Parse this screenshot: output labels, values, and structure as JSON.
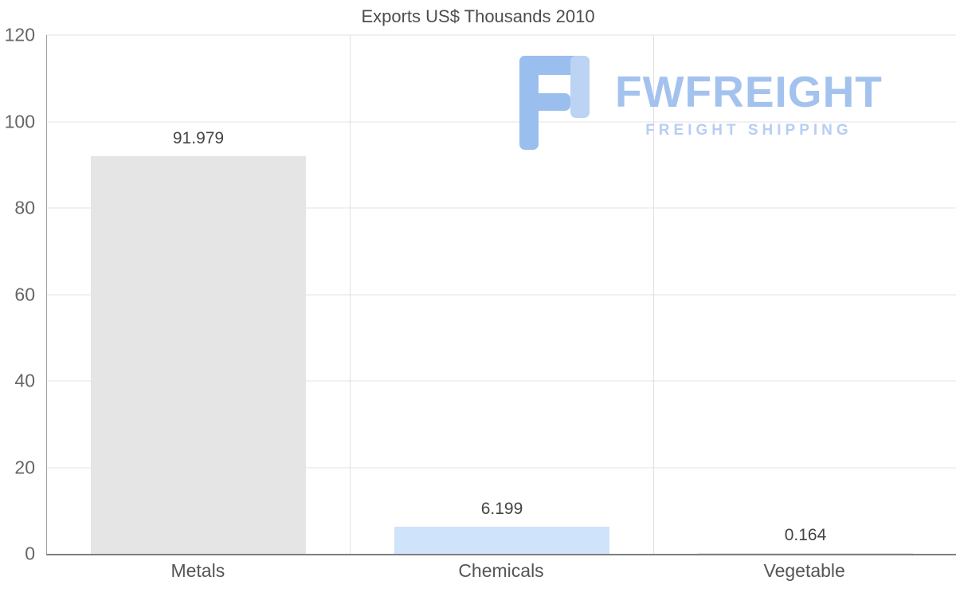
{
  "chart_data": {
    "type": "bar",
    "title": "Exports US$ Thousands 2010",
    "categories": [
      "Metals",
      "Chemicals",
      "Vegetable"
    ],
    "values": [
      91.979,
      6.199,
      0.164
    ],
    "value_labels": [
      "91.979",
      "6.199",
      "0.164"
    ],
    "bar_colors": [
      "#e5e5e5",
      "#cfe3fa",
      "#e5e5e5"
    ],
    "ylim": [
      0,
      120
    ],
    "yticks": [
      0,
      20,
      40,
      60,
      80,
      100,
      120
    ],
    "grid": true,
    "legend": "none",
    "xlabel": "",
    "ylabel": ""
  },
  "watermark": {
    "brand": "FWFREIGHT",
    "tagline": "FREIGHT SHIPPING",
    "brand_color": "#a3c2ee",
    "icon_color_main": "#9abeed",
    "icon_color_light": "#bcd3f4"
  }
}
